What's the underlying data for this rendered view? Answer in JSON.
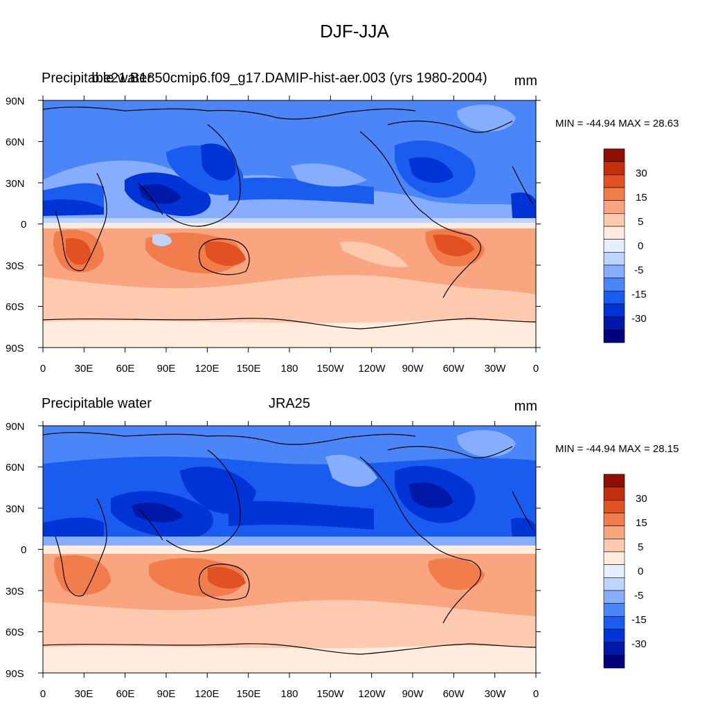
{
  "figure": {
    "title": "DJF-JJA",
    "colors": {
      "land_line": "#000000",
      "levels": [
        "#00007f",
        "#0018a8",
        "#0034d6",
        "#1a5cf0",
        "#4a86f7",
        "#86aefc",
        "#bcd4fe",
        "#e4f0ff",
        "#ffecdd",
        "#fdcab0",
        "#f9a57f",
        "#f27d4c",
        "#e25122",
        "#c22f0a",
        "#8f0f00"
      ]
    },
    "colorbar": {
      "labels": [
        "30",
        "15",
        "5",
        "0",
        "-5",
        "-15",
        "-30"
      ]
    }
  },
  "panels": [
    {
      "left_label": "Precipitable water",
      "center_label": "b.e21.B1850cmip6.f09_g17.DAMIP-hist-aer.003 (yrs 1980-2004)",
      "units": "mm",
      "minmax": "MIN = -44.94 MAX =  28.63",
      "lat_labels": [
        "90N",
        "60N",
        "30N",
        "0",
        "30S",
        "60S",
        "90S"
      ],
      "lon_labels": [
        "0",
        "30E",
        "60E",
        "90E",
        "120E",
        "150E",
        "180",
        "150W",
        "120W",
        "90W",
        "60W",
        "30W",
        "0"
      ]
    },
    {
      "left_label": "Precipitable water",
      "center_label": "JRA25",
      "units": "mm",
      "minmax": "MIN = -44.94 MAX =  28.15",
      "lat_labels": [
        "90N",
        "60N",
        "30N",
        "0",
        "30S",
        "60S",
        "90S"
      ],
      "lon_labels": [
        "0",
        "30E",
        "60E",
        "90E",
        "120E",
        "150E",
        "180",
        "150W",
        "120W",
        "90W",
        "60W",
        "30W",
        "0"
      ]
    }
  ]
}
